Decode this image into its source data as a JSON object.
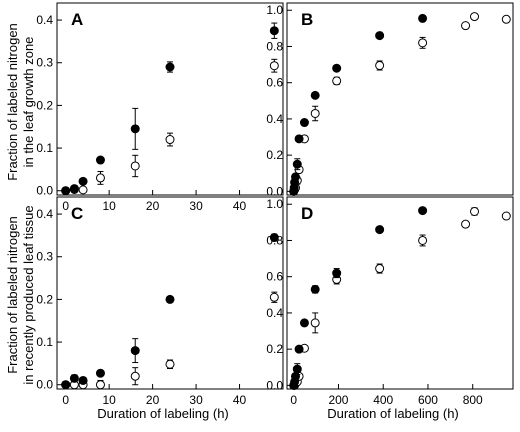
{
  "figure": {
    "ylabel_top": [
      "Fraction of labeled nitrogen",
      "in the leaf growth zone"
    ],
    "ylabel_bottom": [
      "Fraction of labeled nitrogen",
      "in recently produced leaf tissue"
    ],
    "xlabel": "Duration of labeling (h)"
  },
  "colors": {
    "axis": "#000000",
    "filled": "#000000",
    "open_fill": "#ffffff"
  },
  "chart_data": [
    {
      "panel": "A",
      "type": "scatter",
      "xlim": [
        -2,
        50
      ],
      "ylim": [
        -0.01,
        0.44
      ],
      "xticks": [
        0,
        10,
        20,
        30,
        40
      ],
      "xtick_labels": [
        "0",
        "10",
        "20",
        "30",
        "40"
      ],
      "yticks": [
        0,
        0.1,
        0.2,
        0.3,
        0.4
      ],
      "ytick_labels": [
        "0.0",
        "0.1",
        "0.2",
        "0.3",
        "0.4"
      ],
      "series": [
        {
          "marker": "filled",
          "points": [
            {
              "x": 0,
              "y": 0.0
            },
            {
              "x": 2,
              "y": 0.005
            },
            {
              "x": 4,
              "y": 0.022
            },
            {
              "x": 8,
              "y": 0.072
            },
            {
              "x": 16,
              "y": 0.145,
              "err": 0.048
            },
            {
              "x": 24,
              "y": 0.29,
              "err": 0.012
            },
            {
              "x": 48,
              "y": 0.375,
              "err": 0.018
            }
          ]
        },
        {
          "marker": "open",
          "points": [
            {
              "x": 0,
              "y": 0.0
            },
            {
              "x": 2,
              "y": 0.003
            },
            {
              "x": 4,
              "y": 0.002
            },
            {
              "x": 8,
              "y": 0.03,
              "err": 0.015
            },
            {
              "x": 16,
              "y": 0.058,
              "err": 0.025
            },
            {
              "x": 24,
              "y": 0.12,
              "err": 0.015
            },
            {
              "x": 48,
              "y": 0.293,
              "err": 0.015
            }
          ]
        }
      ]
    },
    {
      "panel": "B",
      "type": "scatter",
      "xlim": [
        -30,
        980
      ],
      "ylim": [
        -0.02,
        1.04
      ],
      "xticks": [],
      "xtick_labels": [],
      "yticks": [
        0,
        0.2,
        0.4,
        0.6,
        0.8,
        1.0
      ],
      "ytick_labels": [
        "0.0",
        "0.2",
        "0.4",
        "0.6",
        "0.8",
        "1.0"
      ],
      "series": [
        {
          "marker": "filled",
          "points": [
            {
              "x": 0,
              "y": 0.0
            },
            {
              "x": 2,
              "y": 0.02
            },
            {
              "x": 4,
              "y": 0.05
            },
            {
              "x": 8,
              "y": 0.08
            },
            {
              "x": 16,
              "y": 0.15,
              "err": 0.03
            },
            {
              "x": 24,
              "y": 0.29
            },
            {
              "x": 48,
              "y": 0.38
            },
            {
              "x": 96,
              "y": 0.53
            },
            {
              "x": 192,
              "y": 0.68
            },
            {
              "x": 384,
              "y": 0.86
            },
            {
              "x": 576,
              "y": 0.955
            }
          ]
        },
        {
          "marker": "open",
          "points": [
            {
              "x": 0,
              "y": 0.0
            },
            {
              "x": 4,
              "y": 0.01
            },
            {
              "x": 8,
              "y": 0.02
            },
            {
              "x": 16,
              "y": 0.06,
              "err": 0.02
            },
            {
              "x": 24,
              "y": 0.12
            },
            {
              "x": 48,
              "y": 0.29
            },
            {
              "x": 96,
              "y": 0.43,
              "err": 0.04
            },
            {
              "x": 192,
              "y": 0.61,
              "err": 0.02
            },
            {
              "x": 384,
              "y": 0.695,
              "err": 0.025
            },
            {
              "x": 576,
              "y": 0.82,
              "err": 0.03
            },
            {
              "x": 768,
              "y": 0.915
            },
            {
              "x": 808,
              "y": 0.965
            },
            {
              "x": 950,
              "y": 0.95
            }
          ]
        }
      ]
    },
    {
      "panel": "C",
      "type": "scatter",
      "xlim": [
        -2,
        50
      ],
      "ylim": [
        -0.01,
        0.44
      ],
      "xticks": [
        0,
        10,
        20,
        30,
        40
      ],
      "xtick_labels": [
        "0",
        "10",
        "20",
        "30",
        "40"
      ],
      "yticks": [
        0,
        0.1,
        0.2,
        0.3,
        0.4
      ],
      "ytick_labels": [
        "0.0",
        "0.1",
        "0.2",
        "0.3",
        "0.4"
      ],
      "series": [
        {
          "marker": "filled",
          "points": [
            {
              "x": 0,
              "y": 0.0
            },
            {
              "x": 2,
              "y": 0.015,
              "err": 0.008
            },
            {
              "x": 4,
              "y": 0.01
            },
            {
              "x": 8,
              "y": 0.027
            },
            {
              "x": 16,
              "y": 0.08,
              "err": 0.028
            },
            {
              "x": 24,
              "y": 0.2
            },
            {
              "x": 48,
              "y": 0.345,
              "err": 0.008
            }
          ]
        },
        {
          "marker": "open",
          "points": [
            {
              "x": 0,
              "y": 0.0
            },
            {
              "x": 2,
              "y": 0.0
            },
            {
              "x": 4,
              "y": 0.0
            },
            {
              "x": 8,
              "y": 0.0,
              "err": 0.01
            },
            {
              "x": 16,
              "y": 0.02,
              "err": 0.02
            },
            {
              "x": 24,
              "y": 0.048,
              "err": 0.01
            },
            {
              "x": 48,
              "y": 0.205,
              "err": 0.012
            }
          ]
        }
      ]
    },
    {
      "panel": "D",
      "type": "scatter",
      "xlim": [
        -30,
        980
      ],
      "ylim": [
        -0.02,
        1.04
      ],
      "xticks": [
        0,
        200,
        400,
        600,
        800
      ],
      "xtick_labels": [
        "0",
        "200",
        "400",
        "600",
        "800"
      ],
      "yticks": [
        0,
        0.2,
        0.4,
        0.6,
        0.8,
        1.0
      ],
      "ytick_labels": [
        "0.0",
        "0.2",
        "0.4",
        "0.6",
        "0.8",
        "1.0"
      ],
      "series": [
        {
          "marker": "filled",
          "points": [
            {
              "x": 0,
              "y": 0.0
            },
            {
              "x": 4,
              "y": 0.02
            },
            {
              "x": 8,
              "y": 0.05
            },
            {
              "x": 16,
              "y": 0.09,
              "err": 0.03
            },
            {
              "x": 24,
              "y": 0.2
            },
            {
              "x": 48,
              "y": 0.345
            },
            {
              "x": 96,
              "y": 0.53,
              "err": 0.02
            },
            {
              "x": 192,
              "y": 0.62,
              "err": 0.025
            },
            {
              "x": 384,
              "y": 0.86
            },
            {
              "x": 576,
              "y": 0.965
            }
          ]
        },
        {
          "marker": "open",
          "points": [
            {
              "x": 0,
              "y": 0.0
            },
            {
              "x": 4,
              "y": 0.0
            },
            {
              "x": 8,
              "y": 0.01
            },
            {
              "x": 16,
              "y": 0.02
            },
            {
              "x": 24,
              "y": 0.05
            },
            {
              "x": 48,
              "y": 0.205
            },
            {
              "x": 96,
              "y": 0.345,
              "err": 0.055
            },
            {
              "x": 192,
              "y": 0.585,
              "err": 0.025
            },
            {
              "x": 384,
              "y": 0.645,
              "err": 0.025
            },
            {
              "x": 576,
              "y": 0.8,
              "err": 0.03
            },
            {
              "x": 768,
              "y": 0.89
            },
            {
              "x": 808,
              "y": 0.96,
              "err": 0.02
            },
            {
              "x": 950,
              "y": 0.935
            }
          ]
        }
      ]
    }
  ]
}
